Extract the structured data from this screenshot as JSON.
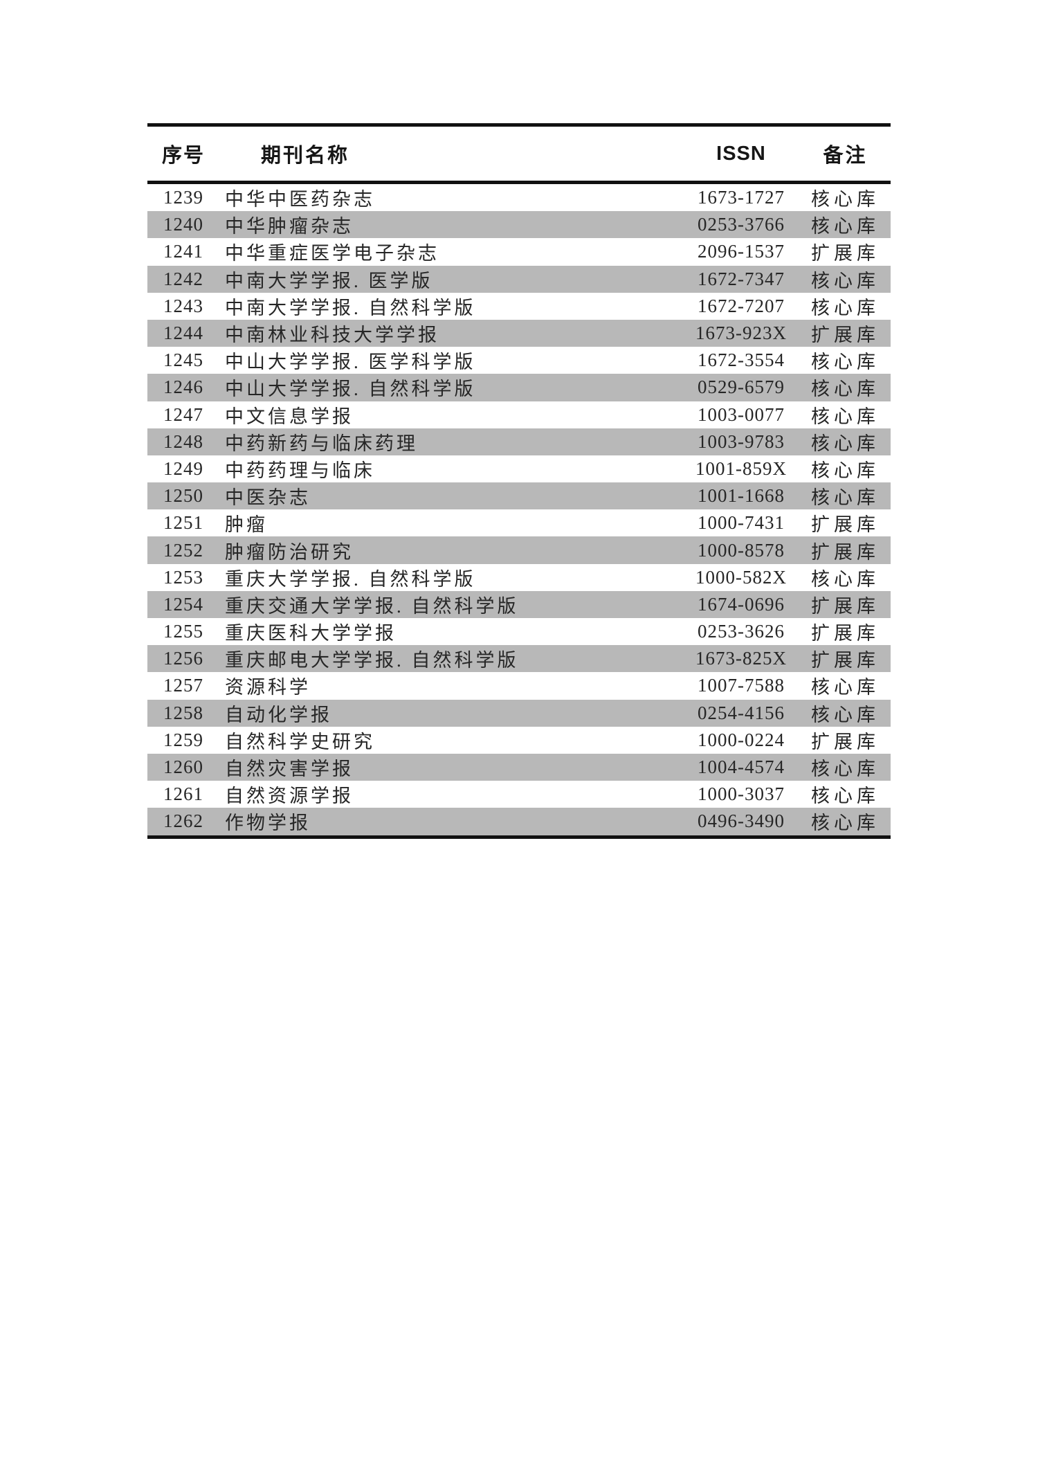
{
  "table": {
    "border_color": "#111111",
    "stripe_color": "#b8b8b8",
    "header": {
      "seq": "序号",
      "name": "期刊名称",
      "issn": "ISSN",
      "note": "备注"
    },
    "rows": [
      {
        "seq": "1239",
        "name": "中华中医药杂志",
        "issn": "1673-1727",
        "note": "核心库"
      },
      {
        "seq": "1240",
        "name": "中华肿瘤杂志",
        "issn": "0253-3766",
        "note": "核心库"
      },
      {
        "seq": "1241",
        "name": "中华重症医学电子杂志",
        "issn": "2096-1537",
        "note": "扩展库"
      },
      {
        "seq": "1242",
        "name": "中南大学学报. 医学版",
        "issn": "1672-7347",
        "note": "核心库"
      },
      {
        "seq": "1243",
        "name": "中南大学学报. 自然科学版",
        "issn": "1672-7207",
        "note": "核心库"
      },
      {
        "seq": "1244",
        "name": "中南林业科技大学学报",
        "issn": "1673-923X",
        "note": "扩展库"
      },
      {
        "seq": "1245",
        "name": "中山大学学报. 医学科学版",
        "issn": "1672-3554",
        "note": "核心库"
      },
      {
        "seq": "1246",
        "name": "中山大学学报. 自然科学版",
        "issn": "0529-6579",
        "note": "核心库"
      },
      {
        "seq": "1247",
        "name": "中文信息学报",
        "issn": "1003-0077",
        "note": "核心库"
      },
      {
        "seq": "1248",
        "name": "中药新药与临床药理",
        "issn": "1003-9783",
        "note": "核心库"
      },
      {
        "seq": "1249",
        "name": "中药药理与临床",
        "issn": "1001-859X",
        "note": "核心库"
      },
      {
        "seq": "1250",
        "name": "中医杂志",
        "issn": "1001-1668",
        "note": "核心库"
      },
      {
        "seq": "1251",
        "name": "肿瘤",
        "issn": "1000-7431",
        "note": "扩展库"
      },
      {
        "seq": "1252",
        "name": "肿瘤防治研究",
        "issn": "1000-8578",
        "note": "扩展库"
      },
      {
        "seq": "1253",
        "name": "重庆大学学报. 自然科学版",
        "issn": "1000-582X",
        "note": "核心库"
      },
      {
        "seq": "1254",
        "name": "重庆交通大学学报. 自然科学版",
        "issn": "1674-0696",
        "note": "扩展库"
      },
      {
        "seq": "1255",
        "name": "重庆医科大学学报",
        "issn": "0253-3626",
        "note": "扩展库"
      },
      {
        "seq": "1256",
        "name": "重庆邮电大学学报. 自然科学版",
        "issn": "1673-825X",
        "note": "扩展库"
      },
      {
        "seq": "1257",
        "name": "资源科学",
        "issn": "1007-7588",
        "note": "核心库"
      },
      {
        "seq": "1258",
        "name": "自动化学报",
        "issn": "0254-4156",
        "note": "核心库"
      },
      {
        "seq": "1259",
        "name": "自然科学史研究",
        "issn": "1000-0224",
        "note": "扩展库"
      },
      {
        "seq": "1260",
        "name": "自然灾害学报",
        "issn": "1004-4574",
        "note": "核心库"
      },
      {
        "seq": "1261",
        "name": "自然资源学报",
        "issn": "1000-3037",
        "note": "核心库"
      },
      {
        "seq": "1262",
        "name": "作物学报",
        "issn": "0496-3490",
        "note": "核心库"
      }
    ]
  }
}
